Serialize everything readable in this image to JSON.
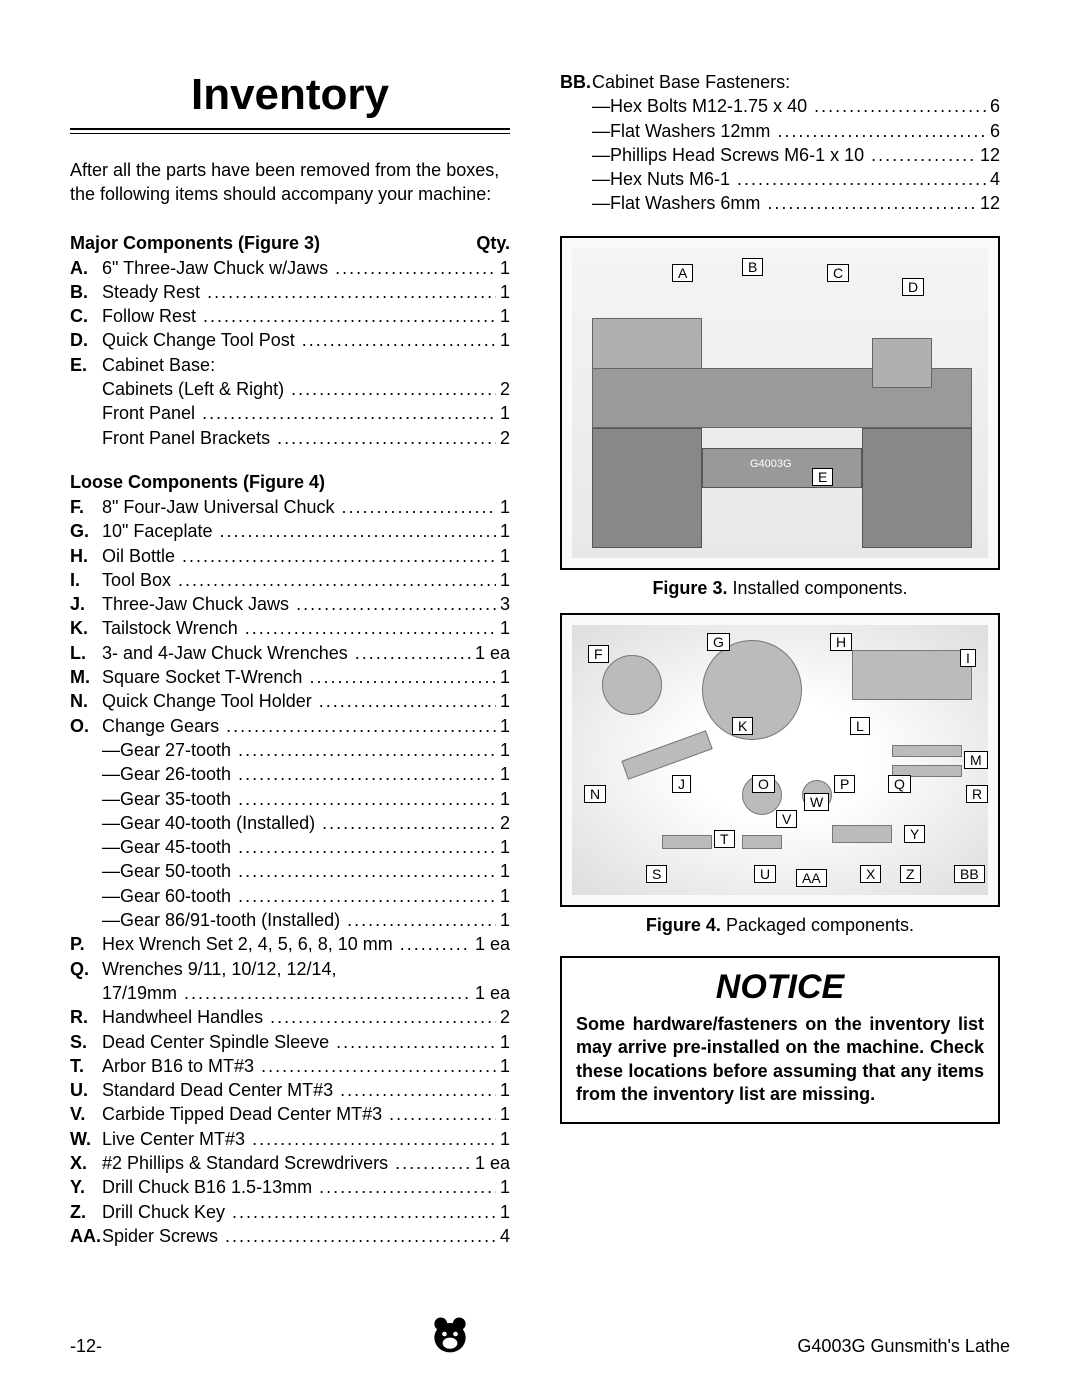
{
  "title": "Inventory",
  "intro": "After all the parts have been removed from the boxes, the following items should accompany your machine:",
  "major_header": {
    "left": "Major Components (Figure 3)",
    "right": "Qty."
  },
  "major_items": [
    {
      "l": "A.",
      "d": "6\" Three-Jaw Chuck w/Jaws",
      "q": "1"
    },
    {
      "l": "B.",
      "d": "Steady Rest",
      "q": "1"
    },
    {
      "l": "C.",
      "d": "Follow Rest",
      "q": "1"
    },
    {
      "l": "D.",
      "d": "Quick Change Tool Post",
      "q": "1"
    },
    {
      "l": "E.",
      "d": "Cabinet Base:",
      "q": ""
    }
  ],
  "major_sub": [
    {
      "d": "Cabinets (Left & Right)",
      "q": "2"
    },
    {
      "d": "Front Panel",
      "q": "1"
    },
    {
      "d": "Front Panel Brackets",
      "q": "2"
    }
  ],
  "loose_header": "Loose Components (Figure 4)",
  "loose_items": [
    {
      "l": "F.",
      "d": "8\" Four-Jaw Universal Chuck",
      "q": "1"
    },
    {
      "l": "G.",
      "d": "10\" Faceplate",
      "q": "1"
    },
    {
      "l": "H.",
      "d": "Oil Bottle",
      "q": "1"
    },
    {
      "l": "I.",
      "d": "Tool Box",
      "q": "1"
    },
    {
      "l": "J.",
      "d": "Three-Jaw Chuck Jaws",
      "q": "3"
    },
    {
      "l": "K.",
      "d": "Tailstock Wrench",
      "q": "1"
    },
    {
      "l": "L.",
      "d": "3- and 4-Jaw Chuck Wrenches",
      "q": "1 ea"
    },
    {
      "l": "M.",
      "d": "Square Socket T-Wrench",
      "q": "1"
    },
    {
      "l": "N.",
      "d": "Quick Change Tool Holder",
      "q": "1"
    },
    {
      "l": "O.",
      "d": "Change Gears",
      "q": "1"
    }
  ],
  "gear_sub": [
    {
      "d": "—Gear 27-tooth",
      "q": "1"
    },
    {
      "d": "—Gear 26-tooth",
      "q": "1"
    },
    {
      "d": "—Gear 35-tooth",
      "q": "1"
    },
    {
      "d": "—Gear 40-tooth (Installed)",
      "q": "2"
    },
    {
      "d": "—Gear 45-tooth",
      "q": "1"
    },
    {
      "d": "—Gear 50-tooth",
      "q": "1"
    },
    {
      "d": "—Gear 60-tooth",
      "q": "1"
    },
    {
      "d": "—Gear 86/91-tooth (Installed)",
      "q": "1"
    }
  ],
  "loose_items2": [
    {
      "l": "P.",
      "d": "Hex Wrench Set 2, 4, 5, 6, 8, 10 mm",
      "q": "1 ea"
    },
    {
      "l": "Q.",
      "d": "Wrenches 9/11, 10/12, 12/14,",
      "q": ""
    }
  ],
  "q_sub": [
    {
      "d": "17/19mm",
      "q": "1 ea"
    }
  ],
  "loose_items3": [
    {
      "l": "R.",
      "d": "Handwheel Handles",
      "q": "2"
    },
    {
      "l": "S.",
      "d": "Dead Center Spindle Sleeve",
      "q": "1"
    },
    {
      "l": "T.",
      "d": "Arbor B16 to MT#3",
      "q": "1"
    },
    {
      "l": "U.",
      "d": "Standard Dead Center MT#3",
      "q": "1"
    },
    {
      "l": "V.",
      "d": "Carbide Tipped Dead Center MT#3",
      "q": "1"
    },
    {
      "l": "W.",
      "d": "Live Center MT#3",
      "q": "1"
    },
    {
      "l": "X.",
      "d": "#2 Phillips & Standard Screwdrivers",
      "q": "1 ea"
    },
    {
      "l": "Y.",
      "d": "Drill Chuck B16 1.5-13mm",
      "q": "1"
    },
    {
      "l": "Z.",
      "d": "Drill Chuck Key",
      "q": "1"
    },
    {
      "l": "AA.",
      "d": "Spider Screws",
      "q": "4"
    }
  ],
  "bb_header": {
    "l": "BB.",
    "d": "Cabinet Base Fasteners:"
  },
  "bb_sub": [
    {
      "d": "—Hex Bolts M12-1.75 x 40",
      "q": "6"
    },
    {
      "d": "—Flat Washers 12mm",
      "q": "6"
    },
    {
      "d": "—Phillips Head Screws M6-1 x 10",
      "q": "12"
    },
    {
      "d": "—Hex Nuts M6-1",
      "q": "4"
    },
    {
      "d": "—Flat Washers 6mm",
      "q": "12"
    }
  ],
  "fig3": {
    "caption_b": "Figure 3.",
    "caption": " Installed components.",
    "labels": [
      "A",
      "B",
      "C",
      "D",
      "E"
    ],
    "model": "G4003G"
  },
  "fig4": {
    "caption_b": "Figure 4.",
    "caption": " Packaged components.",
    "labels": [
      "F",
      "G",
      "H",
      "I",
      "J",
      "K",
      "L",
      "M",
      "N",
      "O",
      "P",
      "Q",
      "R",
      "S",
      "T",
      "U",
      "V",
      "W",
      "X",
      "Y",
      "Z",
      "AA",
      "BB"
    ]
  },
  "notice": {
    "title": "NOTICE",
    "text": "Some hardware/fasteners on the inventory list may arrive pre-installed on the machine. Check these locations before assuming that any items from the inventory list are missing."
  },
  "footer": {
    "page": "-12-",
    "doc": "G4003G Gunsmith's Lathe"
  }
}
